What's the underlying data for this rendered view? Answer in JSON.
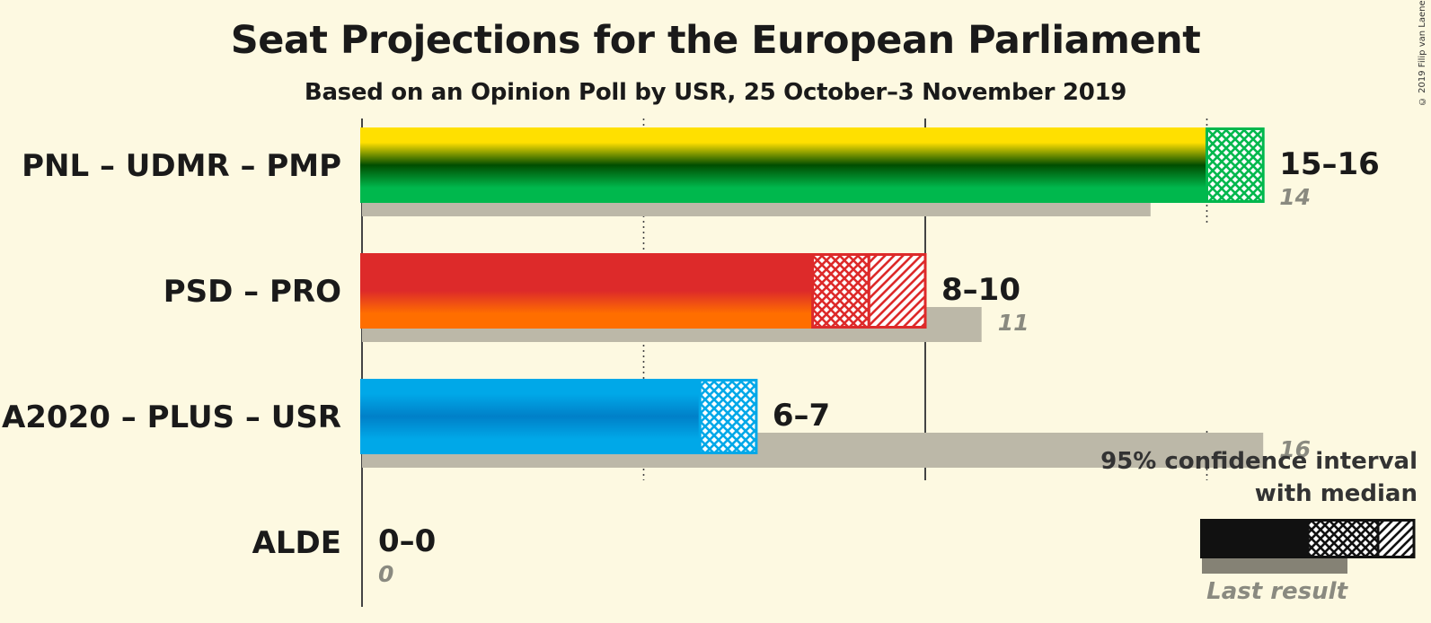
{
  "title": "Seat Projections for the European Parliament",
  "subtitle": "Based on an Opinion Poll by USR, 25 October–3 November 2019",
  "copyright": "© 2019 Filip van Laenen",
  "chart_data": {
    "type": "bar",
    "orientation": "horizontal",
    "title": "Seat Projections for the European Parliament",
    "subtitle": "Based on an Opinion Poll by USR, 25 October–3 November 2019",
    "xlim": [
      0,
      16
    ],
    "gridlines": [
      5,
      10,
      15
    ],
    "categories": [
      "PNL – UDMR – PMP",
      "PSD – PRO",
      "A2020 – PLUS – USR",
      "ALDE"
    ],
    "series": [
      {
        "key": "ci",
        "party_colors": [
          [
            "#ffe000",
            "#004d00",
            "#00b84d"
          ],
          [
            "#dd2a2a",
            "#dd2a2a",
            "#ff6e00"
          ],
          [
            "#00a8e8",
            "#0080c8",
            "#00a8e8"
          ],
          [
            "#00aeef",
            "#0070c0",
            "#00aeef"
          ]
        ],
        "low": [
          15,
          8,
          6,
          0
        ],
        "median": [
          16,
          9,
          7,
          0
        ],
        "high": [
          16,
          10,
          7,
          0
        ],
        "range_labels": [
          "15–16",
          "8–10",
          "6–7",
          "0–0"
        ]
      },
      {
        "key": "last_result",
        "values": [
          14,
          11,
          16,
          0
        ],
        "labels": [
          "14",
          "11",
          "16",
          "0"
        ]
      }
    ],
    "legend": {
      "position": "bottom-right",
      "line1": "95% confidence interval",
      "line2": "with median",
      "last_result_label": "Last result"
    }
  }
}
